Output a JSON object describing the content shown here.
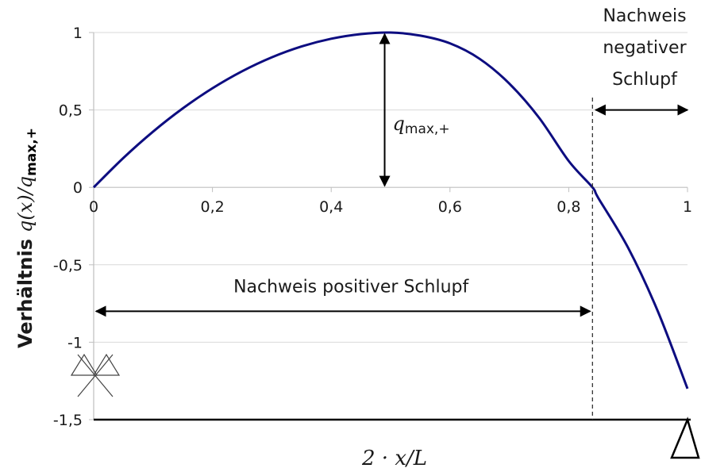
{
  "chart_data": {
    "type": "line",
    "x": [
      0,
      0.05,
      0.1,
      0.15,
      0.2,
      0.25,
      0.3,
      0.35,
      0.4,
      0.45,
      0.5,
      0.55,
      0.6,
      0.65,
      0.7,
      0.75,
      0.8,
      0.84,
      0.85,
      0.9,
      0.95,
      1.0
    ],
    "series": [
      {
        "name": "",
        "color": "#0d0d80",
        "values": [
          0,
          0.19,
          0.36,
          0.51,
          0.64,
          0.75,
          0.84,
          0.91,
          0.96,
          0.99,
          1.0,
          0.98,
          0.93,
          0.83,
          0.67,
          0.45,
          0.17,
          0.0,
          -0.07,
          -0.39,
          -0.8,
          -1.3
        ]
      }
    ],
    "xlim": [
      0,
      1
    ],
    "ylim": [
      -1.5,
      1
    ],
    "x_ticks": [
      0,
      0.2,
      0.4,
      0.6,
      0.8,
      1
    ],
    "x_tick_labels": [
      "0",
      "0,2",
      "0,4",
      "0,6",
      "0,8",
      "1"
    ],
    "y_ticks": [
      1,
      0.5,
      0,
      -0.5,
      -1,
      -1.5
    ],
    "y_tick_labels": [
      "1",
      "0,5",
      "0",
      "-0,5",
      "-1",
      "-1,5"
    ],
    "grid": true,
    "xlabel": "2 · x/L",
    "ylabel_word": "Verhältnis",
    "ylabel_math": "q(x)/q",
    "ylabel_sub": "max,+",
    "annotations": {
      "qmax_label": "q",
      "qmax_sub": "max,+",
      "qmax_x": 0.49,
      "zero_crossing_x": 0.84,
      "positive_slip": "Nachweis positiver Schlupf",
      "positive_slip_y": -0.8,
      "negative_slip_lines": [
        "Nachweis",
        "negativer",
        "Schlupf"
      ],
      "negative_slip_y": 0.5
    },
    "line_color": "#0d0d80",
    "grid_color": "#d9d9d9"
  }
}
